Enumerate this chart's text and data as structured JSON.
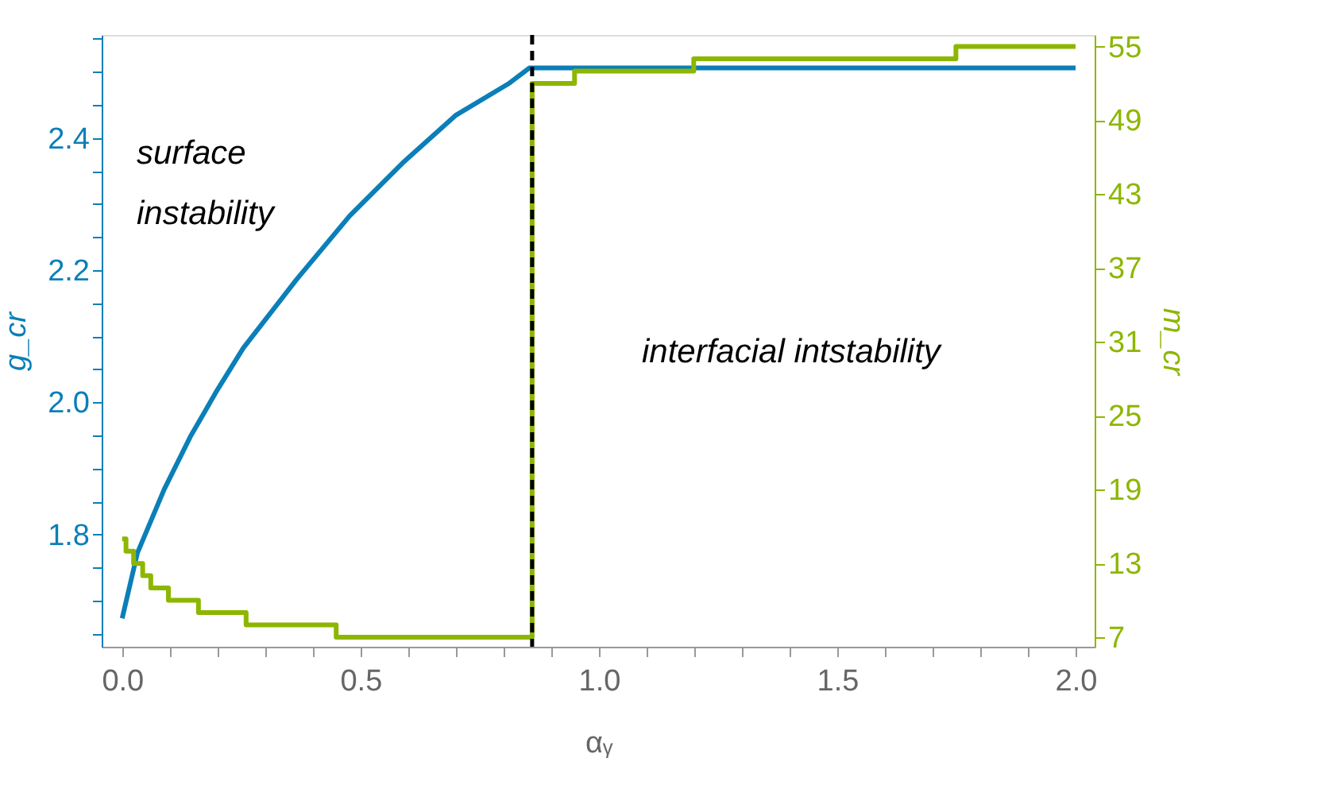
{
  "chart_data": {
    "type": "line",
    "xlabel": "αᵧ",
    "ylabel": "g_cr",
    "y2label": "m_cr",
    "xlim": [
      -0.043,
      2.04
    ],
    "xticks": [
      {
        "value": 0.0,
        "label": "0.0"
      },
      {
        "value": 0.1,
        "label": null
      },
      {
        "value": 0.2,
        "label": null
      },
      {
        "value": 0.3,
        "label": null
      },
      {
        "value": 0.4,
        "label": null
      },
      {
        "value": 0.5,
        "label": "0.5"
      },
      {
        "value": 0.6,
        "label": null
      },
      {
        "value": 0.7,
        "label": null
      },
      {
        "value": 0.8,
        "label": null
      },
      {
        "value": 0.9,
        "label": null
      },
      {
        "value": 1.0,
        "label": "1.0"
      },
      {
        "value": 1.1,
        "label": null
      },
      {
        "value": 1.2,
        "label": null
      },
      {
        "value": 1.3,
        "label": null
      },
      {
        "value": 1.4,
        "label": null
      },
      {
        "value": 1.5,
        "label": "1.5"
      },
      {
        "value": 1.6,
        "label": null
      },
      {
        "value": 1.7,
        "label": null
      },
      {
        "value": 1.8,
        "label": null
      },
      {
        "value": 1.9,
        "label": null
      },
      {
        "value": 2.0,
        "label": "2.0"
      }
    ],
    "ylim": [
      1.63,
      2.556
    ],
    "yticks": [
      {
        "value": 1.65,
        "label": null
      },
      {
        "value": 1.7,
        "label": null
      },
      {
        "value": 1.75,
        "label": null
      },
      {
        "value": 1.8,
        "label": "1.8"
      },
      {
        "value": 1.85,
        "label": null
      },
      {
        "value": 1.9,
        "label": null
      },
      {
        "value": 1.95,
        "label": null
      },
      {
        "value": 2.0,
        "label": "2.0"
      },
      {
        "value": 2.05,
        "label": null
      },
      {
        "value": 2.1,
        "label": null
      },
      {
        "value": 2.15,
        "label": null
      },
      {
        "value": 2.2,
        "label": "2.2"
      },
      {
        "value": 2.25,
        "label": null
      },
      {
        "value": 2.3,
        "label": null
      },
      {
        "value": 2.35,
        "label": null
      },
      {
        "value": 2.4,
        "label": "2.4"
      },
      {
        "value": 2.45,
        "label": null
      },
      {
        "value": 2.5,
        "label": null
      },
      {
        "value": 2.55,
        "label": null
      }
    ],
    "y2lim": [
      6.23,
      55.94
    ],
    "y2ticks": [
      7,
      13,
      19,
      25,
      31,
      37,
      43,
      49,
      55
    ],
    "series": [
      {
        "type": "line",
        "color": "#0a7fb8",
        "x": [
          0.0,
          0.032,
          0.088,
          0.143,
          0.199,
          0.254,
          0.366,
          0.477,
          0.588,
          0.699,
          0.81,
          0.854,
          0.86,
          2.0
        ],
        "values": [
          1.673,
          1.772,
          1.868,
          1.948,
          2.018,
          2.082,
          2.186,
          2.282,
          2.362,
          2.434,
          2.482,
          2.506,
          2.506,
          2.506
        ]
      },
      {
        "type": "step",
        "axis": "y2",
        "color": "#8db600",
        "x": [
          0.0,
          0.008,
          0.024,
          0.043,
          0.06,
          0.097,
          0.16,
          0.26,
          0.449,
          0.86,
          0.949,
          1.199,
          1.749,
          2.0
        ],
        "values": [
          15,
          14,
          13,
          12,
          11,
          10,
          9,
          8,
          7,
          52,
          53,
          54,
          55,
          55
        ]
      }
    ],
    "ref_lines": [
      {
        "axis": "x",
        "value": 0.86,
        "color": "#000000",
        "line_style": "dashed"
      }
    ],
    "annotations": [
      "surface\ninstability",
      "interfacial intstability"
    ]
  }
}
